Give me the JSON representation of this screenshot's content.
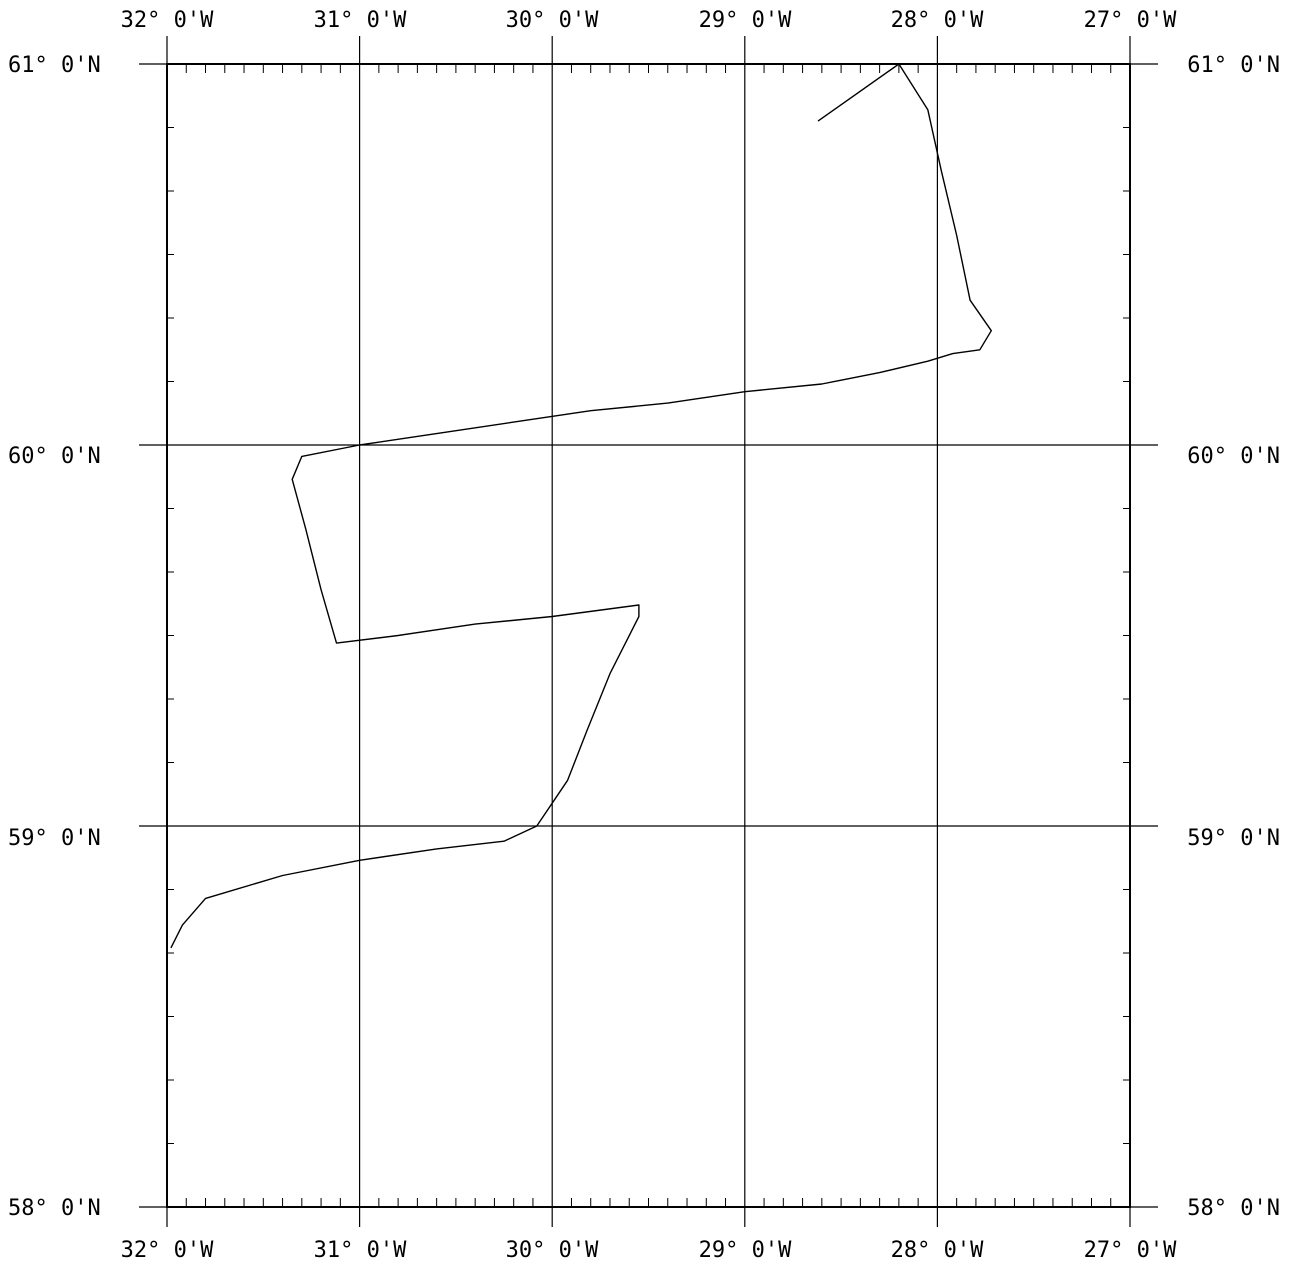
{
  "map": {
    "lon_labels": [
      "32° 0'W",
      "31° 0'W",
      "30° 0'W",
      "29° 0'W",
      "28° 0'W",
      "27° 0'W"
    ],
    "lat_labels": [
      "61° 0'N",
      "60° 0'N",
      "59° 0'N",
      "58° 0'N"
    ],
    "lon_range": [
      -32,
      -27
    ],
    "lat_range": [
      58,
      61
    ],
    "graticule_lon": [
      -32,
      -31,
      -30,
      -29,
      -28,
      -27
    ],
    "graticule_lat": [
      58,
      59,
      60,
      61
    ],
    "colors": {
      "line": "#000000",
      "background": "#ffffff"
    }
  },
  "chart_data": {
    "type": "line",
    "title": "",
    "xlabel": "",
    "ylabel": "",
    "xlim": [
      -32,
      -27
    ],
    "ylim": [
      58,
      61
    ],
    "grid": true,
    "series": [
      {
        "values": [
          [
            -28.62,
            60.85
          ],
          [
            -28.2,
            61.0
          ],
          [
            -28.05,
            60.88
          ],
          [
            -27.98,
            60.72
          ],
          [
            -27.9,
            60.55
          ],
          [
            -27.83,
            60.38
          ],
          [
            -27.72,
            60.3
          ],
          [
            -27.78,
            60.25
          ],
          [
            -27.92,
            60.24
          ],
          [
            -28.05,
            60.22
          ],
          [
            -28.3,
            60.19
          ],
          [
            -28.6,
            60.16
          ],
          [
            -29.0,
            60.14
          ],
          [
            -29.4,
            60.11
          ],
          [
            -29.8,
            60.09
          ],
          [
            -30.2,
            60.06
          ],
          [
            -30.6,
            60.03
          ],
          [
            -31.0,
            60.0
          ],
          [
            -31.3,
            59.97
          ],
          [
            -31.35,
            59.91
          ],
          [
            -31.28,
            59.78
          ],
          [
            -31.2,
            59.62
          ],
          [
            -31.12,
            59.48
          ],
          [
            -30.8,
            59.5
          ],
          [
            -30.4,
            59.53
          ],
          [
            -30.0,
            59.55
          ],
          [
            -29.55,
            59.58
          ],
          [
            -29.55,
            59.55
          ],
          [
            -29.7,
            59.4
          ],
          [
            -29.82,
            59.25
          ],
          [
            -29.92,
            59.12
          ],
          [
            -30.08,
            59.0
          ],
          [
            -30.25,
            58.96
          ],
          [
            -30.6,
            58.94
          ],
          [
            -31.0,
            58.91
          ],
          [
            -31.4,
            58.87
          ],
          [
            -31.8,
            58.81
          ],
          [
            -31.92,
            58.74
          ],
          [
            -31.98,
            58.68
          ]
        ]
      }
    ]
  }
}
